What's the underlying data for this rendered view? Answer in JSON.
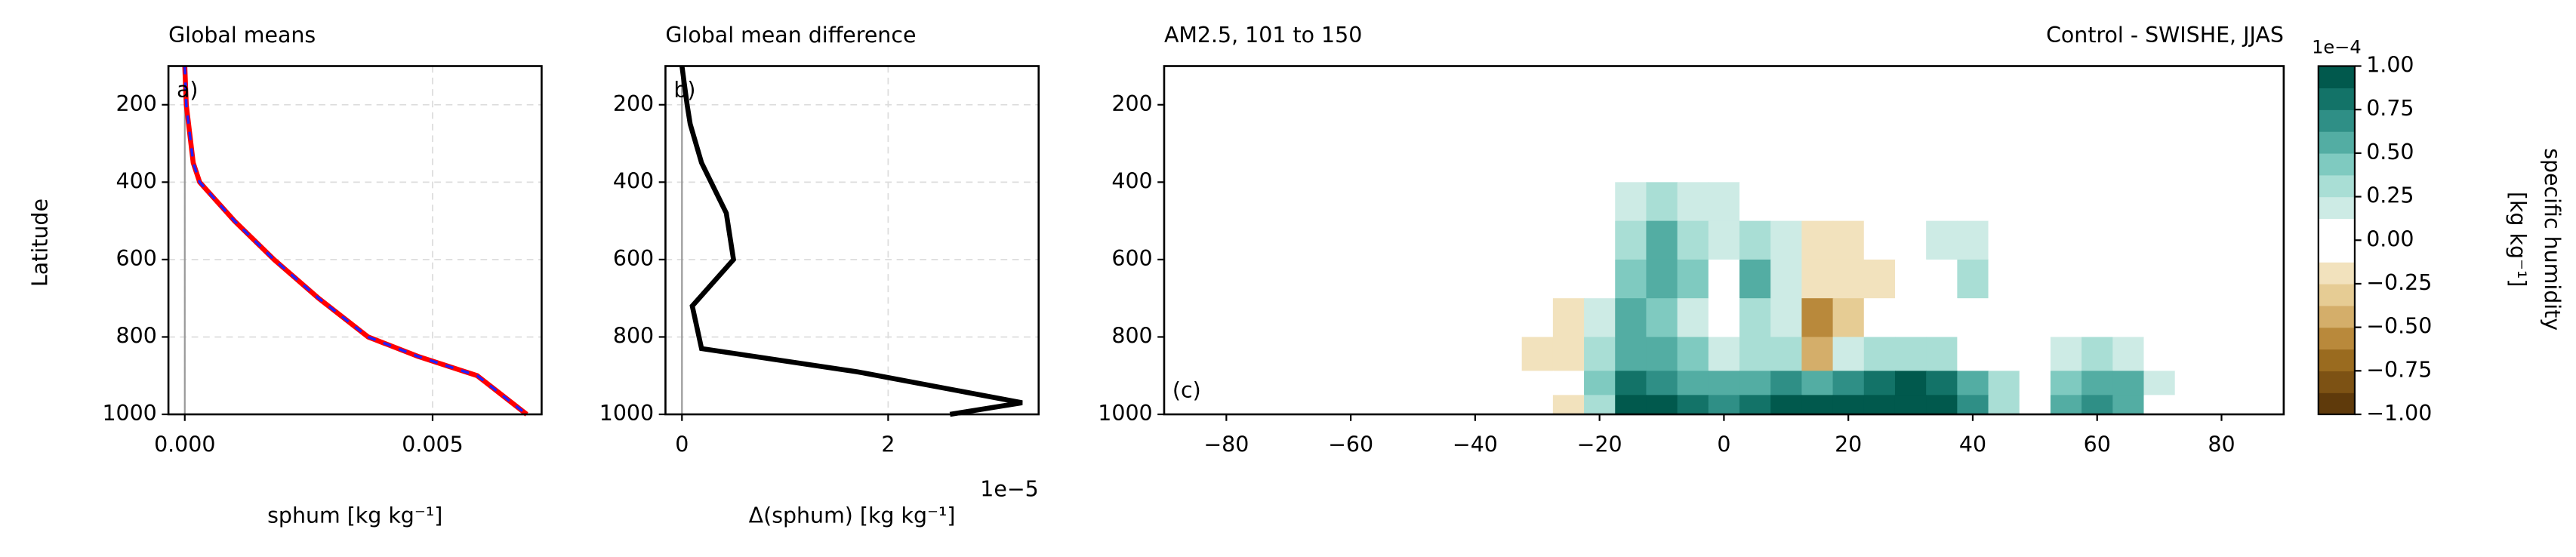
{
  "chart_data": [
    {
      "type": "line",
      "title": "Global means",
      "panel_label": "a)",
      "panel_label_position": "top-left",
      "xlabel": "sphum [kg kg⁻¹]",
      "ylabel": "Latitude",
      "y": [
        100,
        200,
        350,
        400,
        500,
        600,
        700,
        800,
        850,
        900,
        950,
        1000
      ],
      "series": [
        {
          "color": "#ff0000",
          "style": "solid",
          "values": [
            0.0,
            3e-05,
            0.00017,
            0.0003,
            0.001,
            0.0018,
            0.0027,
            0.0037,
            0.0047,
            0.0059,
            0.0064,
            0.0069
          ]
        },
        {
          "color": "#2020ff",
          "style": "dashed",
          "values": [
            0.0,
            3e-05,
            0.00017,
            0.0003,
            0.001,
            0.0018,
            0.0027,
            0.0037,
            0.0047,
            0.0059,
            0.0064,
            0.0069
          ]
        }
      ],
      "xlim": [
        -0.00033,
        0.0072
      ],
      "xticks": [
        {
          "value": 0,
          "label": "0.000"
        },
        0.005
      ],
      "ylim": [
        1000,
        100
      ],
      "yticks": [
        200,
        400,
        600,
        800,
        1000
      ],
      "grid": true,
      "zero_line": true
    },
    {
      "type": "line",
      "title": "Global mean difference",
      "panel_label": "b)",
      "panel_label_position": "top-left",
      "xlabel": "Δ(sphum) [kg kg⁻¹]",
      "x_offset_label": "1e−5",
      "y": [
        100,
        200,
        250,
        350,
        480,
        600,
        720,
        830,
        890,
        970,
        1000
      ],
      "series": [
        {
          "color": "#000000",
          "style": "solid",
          "values": [
            0.0,
            0.05,
            0.08,
            0.19,
            0.43,
            0.5,
            0.1,
            0.19,
            1.7,
            3.3,
            2.6
          ]
        }
      ],
      "xlim": [
        -0.16,
        3.46
      ],
      "xticks": [
        0,
        2
      ],
      "ylim": [
        1000,
        100
      ],
      "yticks": [
        200,
        400,
        600,
        800,
        1000
      ],
      "grid": true,
      "zero_line": true
    },
    {
      "type": "contour",
      "title": "AM2.5, 101 to 150",
      "title_right": "Control - SWISHE, JJAS",
      "panel_label": "(c)",
      "panel_label_position": "bottom-left",
      "x": [
        -90,
        -85,
        -80,
        -75,
        -70,
        -65,
        -60,
        -55,
        -50,
        -45,
        -40,
        -35,
        -30,
        -25,
        -20,
        -15,
        -10,
        -5,
        0,
        5,
        10,
        15,
        20,
        25,
        30,
        35,
        40,
        45,
        50,
        55,
        60,
        65,
        70,
        75,
        80,
        85,
        90
      ],
      "y": [
        150,
        250,
        350,
        450,
        550,
        650,
        750,
        850,
        925,
        975
      ],
      "z": [
        [
          0,
          0,
          0,
          0,
          0,
          0,
          0,
          0,
          0,
          0,
          0,
          0,
          0,
          0,
          0,
          0,
          0,
          0,
          0,
          0,
          0,
          0,
          0,
          0,
          0,
          0,
          0,
          0,
          0,
          0,
          0,
          0,
          0,
          0,
          0,
          0,
          0
        ],
        [
          0,
          0,
          0,
          0,
          0,
          0,
          0,
          0,
          0,
          0,
          0,
          0,
          0,
          0,
          0,
          0,
          0,
          0,
          0,
          0,
          0,
          0,
          0,
          0,
          0,
          0,
          0,
          0,
          0,
          0,
          0,
          0,
          0,
          0,
          0,
          0,
          0
        ],
        [
          0,
          0,
          0,
          0,
          0,
          0,
          0,
          0,
          0,
          0,
          0,
          0,
          0,
          0,
          0,
          0,
          0,
          0,
          0,
          0,
          0,
          0,
          0,
          0,
          0,
          0,
          0,
          0,
          0,
          0,
          0,
          0,
          0,
          0,
          0,
          0,
          0
        ],
        [
          0,
          0,
          0,
          0,
          0,
          0,
          0,
          0,
          0,
          0,
          0,
          0,
          0,
          0,
          0,
          0.15,
          0.25,
          0.2,
          0.15,
          0.1,
          0,
          0,
          0,
          0,
          0,
          0,
          0,
          0,
          0,
          0,
          0,
          0,
          0,
          0,
          0,
          0,
          0
        ],
        [
          0,
          0,
          0,
          0,
          0,
          0,
          0,
          0,
          0,
          0,
          0,
          0,
          0,
          0,
          0,
          0.3,
          0.5,
          0.3,
          0.15,
          0.3,
          0.15,
          -0.15,
          -0.2,
          0,
          0,
          0.15,
          0.2,
          0,
          0,
          0,
          0,
          0,
          0,
          0,
          0,
          0,
          0
        ],
        [
          0,
          0,
          0,
          0,
          0,
          0,
          0,
          0,
          0,
          0,
          0,
          0,
          0,
          0,
          0,
          0.4,
          0.6,
          0.4,
          0.1,
          0.5,
          0.2,
          -0.15,
          -0.25,
          -0.15,
          0,
          0,
          0.3,
          0,
          0,
          0,
          0,
          0,
          0,
          0,
          0,
          0,
          0
        ],
        [
          0,
          0,
          0,
          0,
          0,
          0,
          0,
          0,
          0,
          0,
          0,
          0,
          0,
          -0.15,
          0.2,
          0.5,
          0.4,
          0.2,
          0,
          0.3,
          0.2,
          -0.6,
          -0.3,
          0,
          0,
          0,
          0,
          0.1,
          0,
          0,
          0,
          0,
          0,
          0,
          0,
          0,
          0
        ],
        [
          0,
          0,
          0,
          0,
          0,
          0,
          0,
          0,
          0,
          0,
          0,
          0,
          -0.15,
          -0.2,
          0.3,
          0.6,
          0.5,
          0.4,
          0.2,
          0.35,
          0.3,
          -0.5,
          0.2,
          0.3,
          0.3,
          0.3,
          0,
          0,
          0,
          0.15,
          0.25,
          0.2,
          0,
          0,
          0,
          0,
          0
        ],
        [
          0,
          0,
          0,
          0,
          0,
          0,
          0,
          0,
          0,
          0,
          0,
          0,
          -0.1,
          0,
          0.4,
          0.8,
          0.7,
          0.6,
          0.5,
          0.6,
          0.7,
          0.6,
          0.7,
          0.8,
          0.9,
          0.8,
          0.6,
          0.3,
          0,
          0.4,
          0.6,
          0.5,
          0.2,
          0,
          0,
          0,
          0
        ],
        [
          0,
          0,
          0,
          0,
          0,
          -0.1,
          0,
          0,
          0,
          0,
          0,
          0,
          0,
          -0.2,
          0.3,
          0.9,
          1.0,
          0.8,
          0.7,
          0.8,
          0.9,
          0.9,
          0.9,
          1.0,
          1.0,
          0.9,
          0.7,
          0.3,
          0,
          0.5,
          0.7,
          0.5,
          0.1,
          0,
          0,
          0,
          0
        ]
      ],
      "xlim": [
        -90,
        90
      ],
      "xticks": [
        {
          "value": -80,
          "label": "−80"
        },
        {
          "value": -60,
          "label": "−60"
        },
        {
          "value": -40,
          "label": "−40"
        },
        {
          "value": -20,
          "label": "−20"
        },
        0,
        20,
        40,
        60,
        80
      ],
      "ylim": [
        1000,
        100
      ],
      "yticks": [
        200,
        400,
        600,
        800,
        1000
      ],
      "colorbar": {
        "label": [
          "specific humidity",
          "[kg kg⁻¹]"
        ],
        "offset_label": "1e−4",
        "levels": [
          -1,
          -0.875,
          -0.75,
          -0.625,
          -0.5,
          -0.375,
          -0.25,
          -0.125,
          0,
          0.125,
          0.25,
          0.375,
          0.5,
          0.625,
          0.75,
          0.875,
          1
        ],
        "colors": [
          "#5f3a0b",
          "#7d5214",
          "#9a6b1f",
          "#b9893b",
          "#d4ae6a",
          "#e6cc94",
          "#f2e2bd",
          "#ffffff",
          "#ffffff",
          "#cdebe5",
          "#a9ded5",
          "#7fcac0",
          "#53ada3",
          "#2f8f86",
          "#137368",
          "#01594d"
        ],
        "ticks": [
          {
            "value": -1,
            "label": "−1.00"
          },
          {
            "value": -0.75,
            "label": "−0.75"
          },
          {
            "value": -0.5,
            "label": "−0.50"
          },
          {
            "value": -0.25,
            "label": "−0.25"
          },
          {
            "value": 0,
            "label": "0.00"
          },
          {
            "value": 0.25,
            "label": "0.25"
          },
          {
            "value": 0.5,
            "label": "0.50"
          },
          {
            "value": 0.75,
            "label": "0.75"
          },
          {
            "value": 1,
            "label": "1.00"
          }
        ]
      }
    }
  ]
}
